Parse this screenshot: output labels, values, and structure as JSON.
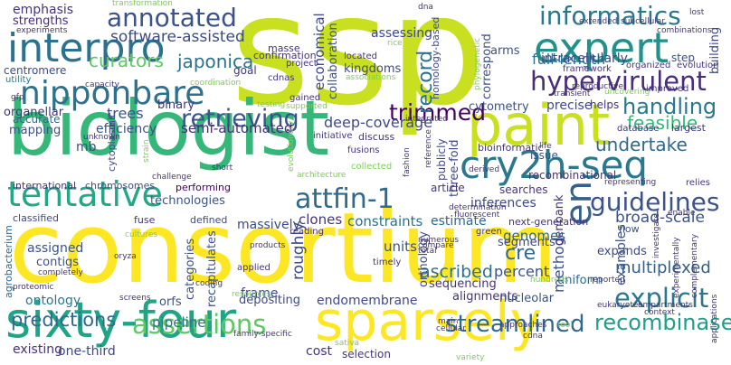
{
  "words": [
    {
      "id": "ssp",
      "text": "ssp",
      "color": "#c8e020"
    },
    {
      "id": "consortium",
      "text": "consortium",
      "color": "#fde725"
    },
    {
      "id": "biologist",
      "text": "biologist",
      "color": "#35b779"
    },
    {
      "id": "paint",
      "text": "paint",
      "color": "#c8e020"
    },
    {
      "id": "sparsely",
      "text": "sparsely",
      "color": "#fde725"
    },
    {
      "id": "sixty-four",
      "text": "sixty-four",
      "color": "#20a486"
    },
    {
      "id": "interpro",
      "text": "interpro",
      "color": "#2c728e"
    },
    {
      "id": "expert",
      "text": "expert",
      "color": "#21918c"
    },
    {
      "id": "cry2h-seq",
      "text": "cry2h-seq",
      "color": "#2a788e"
    },
    {
      "id": "nipponbare",
      "text": "nipponbare",
      "color": "#2c728e"
    },
    {
      "id": "tentative",
      "text": "tentative",
      "color": "#22a884"
    },
    {
      "id": "annotated",
      "text": "annotated",
      "color": "#3b528b"
    },
    {
      "id": "informatics",
      "text": "informatics",
      "color": "#2a788e"
    },
    {
      "id": "hypervirulent",
      "text": "hypervirulent",
      "color": "#472d7b"
    },
    {
      "id": "attfin-1",
      "text": "attfin-1",
      "color": "#31688e"
    },
    {
      "id": "guidelines",
      "text": "guidelines",
      "color": "#3b528b"
    },
    {
      "id": "assertions",
      "text": "assertions",
      "color": "#5ec962"
    },
    {
      "id": "streamlined",
      "text": "streamlined",
      "color": "#31688e"
    },
    {
      "id": "recombinase",
      "text": "recombinase",
      "color": "#1f9e89"
    },
    {
      "id": "explicit",
      "text": "explicit",
      "color": "#2a788e"
    },
    {
      "id": "retrieving",
      "text": "retrieving",
      "color": "#3b528b"
    },
    {
      "id": "en",
      "text": "en",
      "color": "#355f8d"
    },
    {
      "id": "trimmed",
      "text": "trimmed",
      "color": "#44015e"
    },
    {
      "id": "software-assisted",
      "text": "software-assisted",
      "color": "#3e4989"
    },
    {
      "id": "curators",
      "text": "curators",
      "color": "#5ec962"
    },
    {
      "id": "japonica",
      "text": "japonica",
      "color": "#2c728e"
    },
    {
      "id": "record",
      "text": "record",
      "color": "#2c728e"
    },
    {
      "id": "handling",
      "text": "handling",
      "color": "#2a788e"
    },
    {
      "id": "undertake",
      "text": "undertake",
      "color": "#31688e"
    },
    {
      "id": "feasible",
      "text": "feasible",
      "color": "#35b779"
    },
    {
      "id": "broad-scale",
      "text": "broad-scale",
      "color": "#3b528b"
    },
    {
      "id": "multiplexed",
      "text": "multiplexed",
      "color": "#355f8d"
    },
    {
      "id": "predictions",
      "text": "predictions",
      "color": "#31688e"
    },
    {
      "id": "full-length",
      "text": "full-length",
      "color": "#2c728e"
    },
    {
      "id": "semi-automated",
      "text": "semi-automated",
      "color": "#472d7b"
    },
    {
      "id": "deep-coverage",
      "text": "deep-coverage",
      "color": "#3e4989"
    },
    {
      "id": "trees",
      "text": "trees",
      "color": "#3b528b"
    },
    {
      "id": "binary",
      "text": "binary",
      "color": "#46337e"
    },
    {
      "id": "roughly",
      "text": "roughly",
      "color": "#3e4989"
    },
    {
      "id": "cre",
      "text": "cre",
      "color": "#31688e"
    },
    {
      "id": "percent",
      "text": "percent",
      "color": "#3b528b"
    },
    {
      "id": "method",
      "text": "method",
      "color": "#3b528b"
    },
    {
      "id": "ascribed",
      "text": "ascribed",
      "color": "#2c728e"
    },
    {
      "id": "genomes",
      "text": "genomes",
      "color": "#31688e"
    },
    {
      "id": "inferences",
      "text": "inferences",
      "color": "#3e4989"
    },
    {
      "id": "clones",
      "text": "clones",
      "color": "#46337e"
    },
    {
      "id": "massively",
      "text": "massively",
      "color": "#3e4989"
    },
    {
      "id": "constraints",
      "text": "constraints",
      "color": "#2c728e"
    },
    {
      "id": "estimate",
      "text": "estimate",
      "color": "#31688e"
    },
    {
      "id": "emphasis",
      "text": "emphasis",
      "color": "#46337e"
    },
    {
      "id": "strengths",
      "text": "strengths",
      "color": "#472d7b"
    },
    {
      "id": "centromere",
      "text": "centromere",
      "color": "#3e4989"
    },
    {
      "id": "utility",
      "text": "utility",
      "color": "#2c728e"
    },
    {
      "id": "organellar",
      "text": "organellar",
      "color": "#46337e"
    },
    {
      "id": "accurate",
      "text": "accurate",
      "color": "#31688e"
    },
    {
      "id": "mapping",
      "text": "mapping",
      "color": "#3b528b"
    },
    {
      "id": "efficiency",
      "text": "efficiency",
      "color": "#3b528b"
    },
    {
      "id": "mb",
      "text": "mb",
      "color": "#3e4989"
    },
    {
      "id": "cytoplasmic",
      "text": "cytoplasmic",
      "color": "#3e4989"
    },
    {
      "id": "international",
      "text": "international",
      "color": "#46337e"
    },
    {
      "id": "chromosomes",
      "text": "chromosomes",
      "color": "#3b528b"
    },
    {
      "id": "performing",
      "text": "performing",
      "color": "#44015e"
    },
    {
      "id": "technologies",
      "text": "technologies",
      "color": "#3b528b"
    },
    {
      "id": "classified",
      "text": "classified",
      "color": "#3e4989"
    },
    {
      "id": "fuse",
      "text": "fuse",
      "color": "#46337e"
    },
    {
      "id": "defined",
      "text": "defined",
      "color": "#3e4989"
    },
    {
      "id": "assigned",
      "text": "assigned",
      "color": "#3b528b"
    },
    {
      "id": "contigs",
      "text": "contigs",
      "color": "#3b528b"
    },
    {
      "id": "agrobacterium",
      "text": "agrobacterium",
      "color": "#31688e"
    },
    {
      "id": "ontology",
      "text": "ontology",
      "color": "#2a788e"
    },
    {
      "id": "orfs",
      "text": "orfs",
      "color": "#3b528b"
    },
    {
      "id": "categories",
      "text": "categories",
      "color": "#3b528b"
    },
    {
      "id": "recapitulates",
      "text": "recapitulates",
      "color": "#3b528b"
    },
    {
      "id": "frame",
      "text": "frame",
      "color": "#3e4989"
    },
    {
      "id": "depositing",
      "text": "depositing",
      "color": "#3e4989"
    },
    {
      "id": "endomembrane",
      "text": "endomembrane",
      "color": "#3e4989"
    },
    {
      "id": "units",
      "text": "units",
      "color": "#3b528b"
    },
    {
      "id": "orthology",
      "text": "orthology",
      "color": "#3e4989"
    },
    {
      "id": "sequencing",
      "text": "sequencing",
      "color": "#46337e"
    },
    {
      "id": "alignments",
      "text": "alignments",
      "color": "#46337e"
    },
    {
      "id": "segments",
      "text": "segments",
      "color": "#3e4989"
    },
    {
      "id": "genbank",
      "text": "genbank",
      "color": "#46337e"
    },
    {
      "id": "nucleolar",
      "text": "nucleolar",
      "color": "#3b528b"
    },
    {
      "id": "uniform",
      "text": "uniform",
      "color": "#31688e"
    },
    {
      "id": "expands",
      "text": "expands",
      "color": "#3e4989"
    },
    {
      "id": "examples",
      "text": "examples",
      "color": "#3b528b"
    },
    {
      "id": "pipeline",
      "text": "pipeline",
      "color": "#2c728e"
    },
    {
      "id": "existing",
      "text": "existing",
      "color": "#46337e"
    },
    {
      "id": "one-third",
      "text": "one-third",
      "color": "#3e4989"
    },
    {
      "id": "cost",
      "text": "cost",
      "color": "#46337e"
    },
    {
      "id": "selection",
      "text": "selection",
      "color": "#46337e"
    },
    {
      "id": "informatics-verts",
      "text": "economical",
      "color": "#3e4989"
    },
    {
      "id": "collaboration",
      "text": "collaboration",
      "color": "#3b528b"
    },
    {
      "id": "assessing",
      "text": "assessing",
      "color": "#3e4989"
    },
    {
      "id": "correspond",
      "text": "correspond",
      "color": "#3b528b"
    },
    {
      "id": "arms",
      "text": "arms",
      "color": "#3b528b"
    },
    {
      "id": "intracellularly",
      "text": "intracellularly",
      "color": "#3e4989"
    },
    {
      "id": "step",
      "text": "step",
      "color": "#3e4989"
    },
    {
      "id": "building",
      "text": "building",
      "color": "#3e4989"
    },
    {
      "id": "kingdoms",
      "text": "kingdoms",
      "color": "#3e4989"
    },
    {
      "id": "goal",
      "text": "goal",
      "color": "#46337e"
    },
    {
      "id": "cytometry",
      "text": "cytometry",
      "color": "#3b528b"
    },
    {
      "id": "precise",
      "text": "precise",
      "color": "#3e4989"
    },
    {
      "id": "helps",
      "text": "helps",
      "color": "#46337e"
    },
    {
      "id": "homology-based",
      "text": "homology-based",
      "color": "#3e4989"
    },
    {
      "id": "three-fold",
      "text": "three-fold",
      "color": "#3e4989"
    },
    {
      "id": "publicly",
      "text": "publicly",
      "color": "#3e4989"
    },
    {
      "id": "searches",
      "text": "searches",
      "color": "#46337e"
    },
    {
      "id": "recombinational",
      "text": "recombinational",
      "color": "#46337e"
    },
    {
      "id": "article",
      "text": "article",
      "color": "#46337e"
    },
    {
      "id": "issue",
      "text": "issue",
      "color": "#3b528b"
    },
    {
      "id": "bioinformatic",
      "text": "bioinformatic",
      "color": "#46337e"
    },
    {
      "id": "next-generation",
      "text": "next-generation",
      "color": "#46337e"
    },
    {
      "id": "flow",
      "text": "flow",
      "color": "#3b528b"
    },
    {
      "id": "relies",
      "text": "relies",
      "color": "#46337e"
    },
    {
      "id": "largest",
      "text": "largest",
      "color": "#46337e"
    },
    {
      "id": "database",
      "text": "database",
      "color": "#46337e"
    },
    {
      "id": "improved",
      "text": "improved",
      "color": "#46337e"
    },
    {
      "id": "organized",
      "text": "organized",
      "color": "#46337e"
    },
    {
      "id": "evolution",
      "text": "evolution",
      "color": "#46337e"
    },
    {
      "id": "framework",
      "text": "framework",
      "color": "#46337e"
    },
    {
      "id": "confirmation",
      "text": "confirmation",
      "color": "#46337e"
    },
    {
      "id": "masse",
      "text": "masse",
      "color": "#46337e"
    },
    {
      "id": "project",
      "text": "project",
      "color": "#46337e"
    },
    {
      "id": "located",
      "text": "located",
      "color": "#46337e"
    },
    {
      "id": "cdnas",
      "text": "cdnas",
      "color": "#46337e"
    },
    {
      "id": "coordination",
      "text": "coordination",
      "color": "#7ad151"
    },
    {
      "id": "gained",
      "text": "gained",
      "color": "#46337e"
    },
    {
      "id": "testing",
      "text": "testing",
      "color": "#7ad151"
    },
    {
      "id": "supported",
      "text": "supported",
      "color": "#7ad151"
    },
    {
      "id": "initiative",
      "text": "initiative",
      "color": "#46337e"
    },
    {
      "id": "discuss",
      "text": "discuss",
      "color": "#46337e"
    },
    {
      "id": "fusions",
      "text": "fusions",
      "color": "#46337e"
    },
    {
      "id": "collected",
      "text": "collected",
      "color": "#7ad151"
    },
    {
      "id": "reading",
      "text": "reading",
      "color": "#46337e"
    },
    {
      "id": "architecture",
      "text": "architecture",
      "color": "#7ad151"
    },
    {
      "id": "products",
      "text": "products",
      "color": "#46337e"
    },
    {
      "id": "timely",
      "text": "timely",
      "color": "#46337e"
    },
    {
      "id": "total",
      "text": "total",
      "color": "#46337e"
    },
    {
      "id": "numerous",
      "text": "numerous",
      "color": "#46337e"
    },
    {
      "id": "compare",
      "text": "compare",
      "color": "#46337e"
    },
    {
      "id": "green",
      "text": "green",
      "color": "#46337e"
    },
    {
      "id": "applied",
      "text": "applied",
      "color": "#46337e"
    },
    {
      "id": "resources",
      "text": "resources",
      "color": "#7ad151"
    },
    {
      "id": "main",
      "text": "main",
      "color": "#46337e"
    },
    {
      "id": "cellular",
      "text": "cellular",
      "color": "#46337e"
    },
    {
      "id": "approaches",
      "text": "approaches",
      "color": "#46337e"
    },
    {
      "id": "tool",
      "text": "tool",
      "color": "#7ad151"
    },
    {
      "id": "cdna",
      "text": "cdna",
      "color": "#46337e"
    },
    {
      "id": "sativa",
      "text": "sativa",
      "color": "#7ad151"
    },
    {
      "id": "family-specific",
      "text": "family-specific",
      "color": "#46337e"
    },
    {
      "id": "coding",
      "text": "coding",
      "color": "#46337e"
    },
    {
      "id": "screens",
      "text": "screens",
      "color": "#46337e"
    },
    {
      "id": "proteomic",
      "text": "proteomic",
      "color": "#46337e"
    },
    {
      "id": "completely",
      "text": "completely",
      "color": "#46337e"
    },
    {
      "id": "oryza",
      "text": "oryza",
      "color": "#46337e"
    },
    {
      "id": "cultures",
      "text": "cultures",
      "color": "#7ad151"
    },
    {
      "id": "eukaryotes",
      "text": "eukaryotes",
      "color": "#46337e"
    },
    {
      "id": "compartments",
      "text": "compartments",
      "color": "#46337e"
    },
    {
      "id": "context",
      "text": "context",
      "color": "#46337e"
    },
    {
      "id": "investigate",
      "text": "investigate",
      "color": "#46337e"
    },
    {
      "id": "experimentally",
      "text": "experimentally",
      "color": "#46337e"
    },
    {
      "id": "complementary",
      "text": "complementary",
      "color": "#46337e"
    },
    {
      "id": "applications",
      "text": "applications",
      "color": "#46337e"
    },
    {
      "id": "representing",
      "text": "representing",
      "color": "#46337e"
    },
    {
      "id": "hundreds",
      "text": "hundreds",
      "color": "#7ad151"
    },
    {
      "id": "reported",
      "text": "reported",
      "color": "#46337e"
    },
    {
      "id": "lost",
      "text": "lost",
      "color": "#46337e"
    },
    {
      "id": "extended",
      "text": "extended",
      "color": "#46337e"
    },
    {
      "id": "subcellular",
      "text": "subcellular",
      "color": "#46337e"
    },
    {
      "id": "combinations",
      "text": "combinations",
      "color": "#46337e"
    },
    {
      "id": "transient",
      "text": "transient",
      "color": "#46337e"
    },
    {
      "id": "uncovering",
      "text": "uncovering",
      "color": "#7ad151"
    },
    {
      "id": "reproductive",
      "text": "reproductive",
      "color": "#46337e"
    },
    {
      "id": "phylogenetic",
      "text": "phylogenetic",
      "color": "#7ad151"
    },
    {
      "id": "derived",
      "text": "derived",
      "color": "#46337e"
    },
    {
      "id": "determination",
      "text": "determination",
      "color": "#46337e"
    },
    {
      "id": "fluorescent",
      "text": "fluorescent",
      "color": "#46337e"
    },
    {
      "id": "fashion",
      "text": "fashion",
      "color": "#46337e"
    },
    {
      "id": "reference",
      "text": "reference",
      "color": "#46337e"
    },
    {
      "id": "integrated",
      "text": "integrated",
      "color": "#46337e"
    },
    {
      "id": "evolutionary",
      "text": "evolutionary",
      "color": "#7ad151"
    },
    {
      "id": "unknown",
      "text": "unknown",
      "color": "#46337e"
    },
    {
      "id": "strain",
      "text": "strain",
      "color": "#7ad151"
    },
    {
      "id": "challenge",
      "text": "challenge",
      "color": "#46337e"
    },
    {
      "id": "short",
      "text": "short",
      "color": "#46337e"
    },
    {
      "id": "experiments",
      "text": "experiments",
      "color": "#46337e"
    },
    {
      "id": "gfp",
      "text": "gfp",
      "color": "#46337e"
    },
    {
      "id": "capacity",
      "text": "capacity",
      "color": "#46337e"
    },
    {
      "id": "variety",
      "text": "variety",
      "color": "#7ad151"
    },
    {
      "id": "transformation",
      "text": "transformation",
      "color": "#7ad151"
    },
    {
      "id": "dna",
      "text": "dna",
      "color": "#46337e"
    },
    {
      "id": "rice",
      "text": "rice",
      "color": "#7ad151"
    },
    {
      "id": "associations",
      "text": "associations",
      "color": "#7ad151"
    },
    {
      "id": "life",
      "text": "life",
      "color": "#46337e"
    },
    {
      "id": "enable",
      "text": "enable",
      "color": "#46337e"
    }
  ]
}
